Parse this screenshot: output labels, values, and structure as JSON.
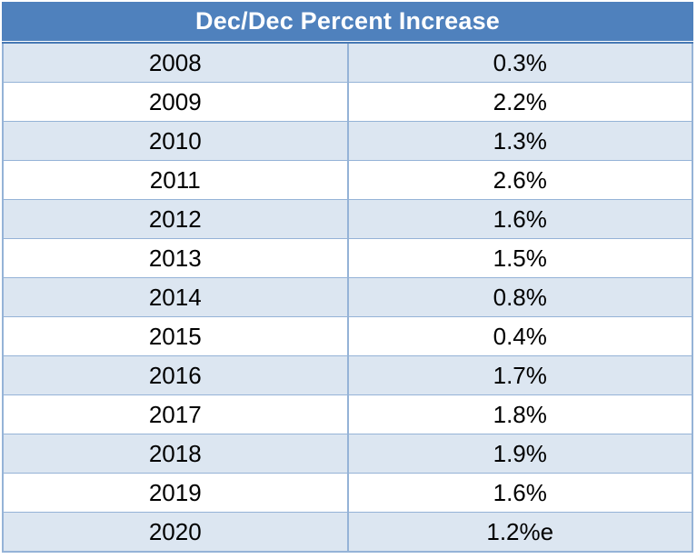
{
  "table": {
    "title": "Dec/Dec Percent Increase",
    "rows": [
      {
        "year": "2008",
        "value": "0.3%"
      },
      {
        "year": "2009",
        "value": "2.2%"
      },
      {
        "year": "2010",
        "value": "1.3%"
      },
      {
        "year": "2011",
        "value": "2.6%"
      },
      {
        "year": "2012",
        "value": "1.6%"
      },
      {
        "year": "2013",
        "value": "1.5%"
      },
      {
        "year": "2014",
        "value": "0.8%"
      },
      {
        "year": "2015",
        "value": "0.4%"
      },
      {
        "year": "2016",
        "value": "1.7%"
      },
      {
        "year": "2017",
        "value": "1.8%"
      },
      {
        "year": "2018",
        "value": "1.9%"
      },
      {
        "year": "2019",
        "value": "1.6%"
      },
      {
        "year": "2020",
        "value": "1.2%e"
      }
    ]
  },
  "colors": {
    "header_bg": "#4F81BD",
    "header_text": "#FFFFFF",
    "header_rule": "#4879B4",
    "row_alt_bg": "#DCE6F1",
    "border": "#95B3D7"
  },
  "chart_data": {
    "type": "table",
    "title": "Dec/Dec Percent Increase",
    "categories": [
      "2008",
      "2009",
      "2010",
      "2011",
      "2012",
      "2013",
      "2014",
      "2015",
      "2016",
      "2017",
      "2018",
      "2019",
      "2020"
    ],
    "values": [
      "0.3%",
      "2.2%",
      "1.3%",
      "2.6%",
      "1.6%",
      "1.5%",
      "0.8%",
      "0.4%",
      "1.7%",
      "1.8%",
      "1.9%",
      "1.6%",
      "1.2%e"
    ],
    "numeric_values": [
      0.3,
      2.2,
      1.3,
      2.6,
      1.6,
      1.5,
      0.8,
      0.4,
      1.7,
      1.8,
      1.9,
      1.6,
      1.2
    ],
    "layout": {
      "columns": 2,
      "header_spans_both_columns": true,
      "alternating_row_shading": true,
      "text_alignment": "center"
    }
  }
}
